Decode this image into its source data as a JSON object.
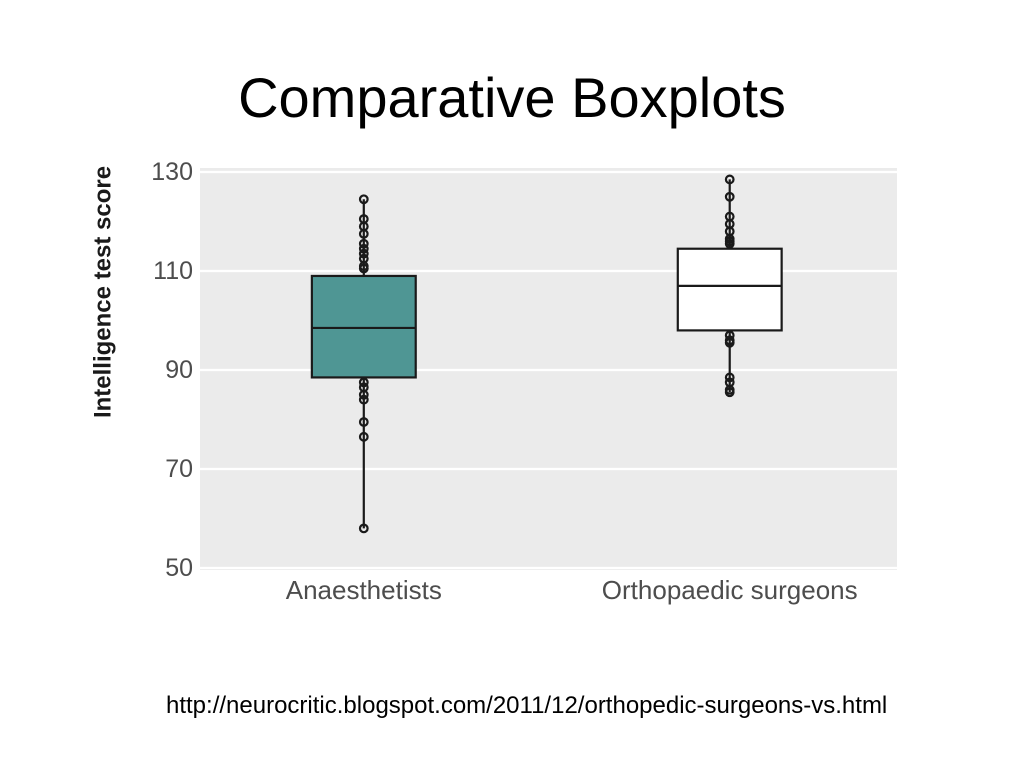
{
  "chart_data": {
    "type": "boxplot",
    "title": "Comparative Boxplots",
    "ylabel": "Intelligence test score",
    "categories": [
      "Anaesthetists",
      "Orthopaedic surgeons"
    ],
    "yticks": [
      50,
      70,
      90,
      110,
      130
    ],
    "ylim": [
      50,
      130
    ],
    "grid": true,
    "panel_color": "#ebebeb",
    "boxes": [
      {
        "fill": "#4f9694",
        "min": 58,
        "q1": 88.5,
        "median": 98.5,
        "q3": 109,
        "max": 124.5,
        "outliers": [
          124.5,
          120.5,
          119,
          117.5,
          115.5,
          114.5,
          113.5,
          112.5,
          111,
          110.5,
          87.5,
          86.5,
          85,
          84,
          79.5,
          76.5,
          58
        ]
      },
      {
        "fill": "#ffffff",
        "min": 85.5,
        "q1": 98,
        "median": 107,
        "q3": 114.5,
        "max": 128.5,
        "outliers": [
          128.5,
          125,
          121,
          119.5,
          118,
          116.5,
          116,
          115.5,
          97,
          96,
          95.5,
          88.5,
          87.5,
          86,
          85.5
        ]
      }
    ]
  },
  "footer": {
    "text": "http://neurocritic.blogspot.com/2011/12/orthopedic-surgeons-vs.html"
  }
}
